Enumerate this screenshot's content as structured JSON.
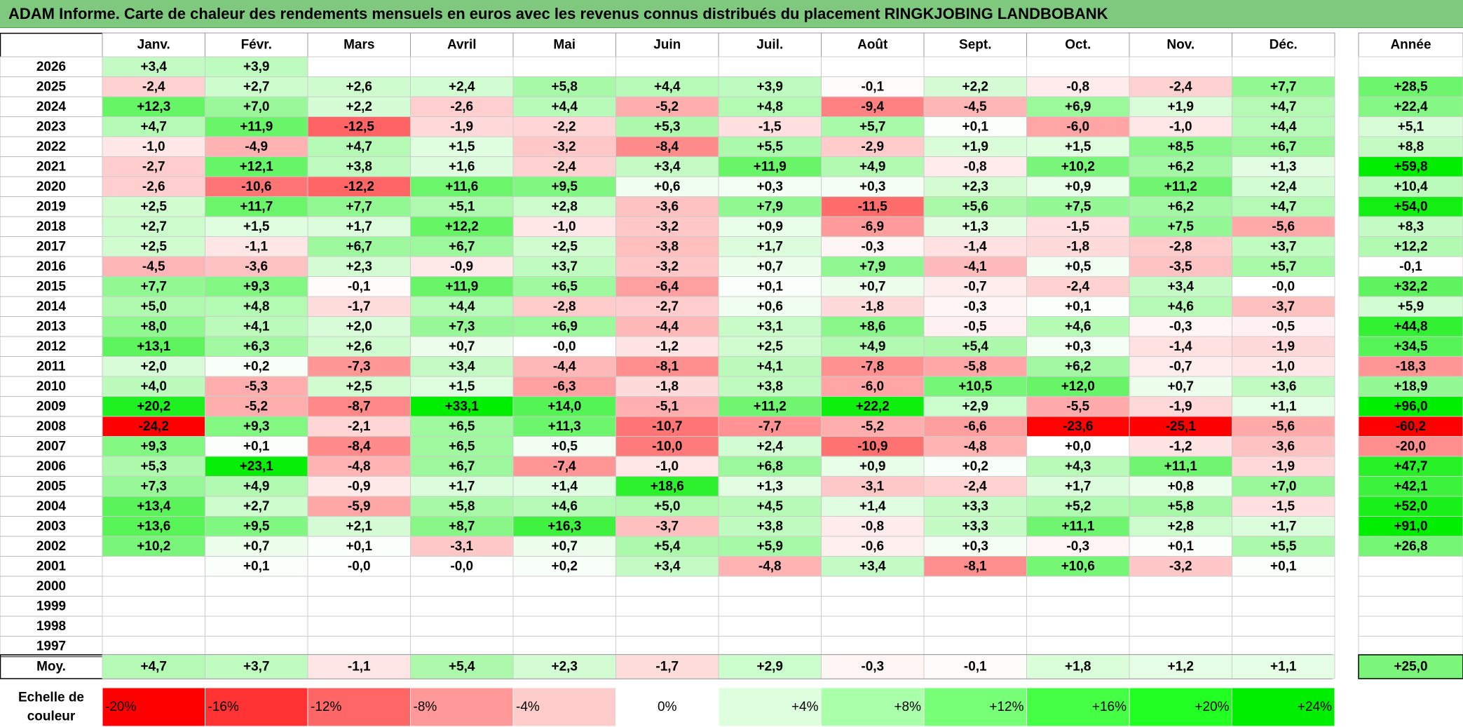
{
  "title": "ADAM Informe. Carte de chaleur des rendements mensuels en euros avec les revenus connus distribués du placement RINGKJOBING LANDBOBANK",
  "chart_data": {
    "type": "heatmap",
    "title": "ADAM Informe. Carte de chaleur des rendements mensuels en euros avec les revenus connus distribués du placement RINGKJOBING LANDBOBANK",
    "months": [
      "Janv.",
      "Févr.",
      "Mars",
      "Avril",
      "Mai",
      "Juin",
      "Juil.",
      "Août",
      "Sept.",
      "Oct.",
      "Nov.",
      "Déc."
    ],
    "year_header": "Année",
    "rows": [
      {
        "year": "2026",
        "values": [
          "+3,4",
          "+3,9",
          "",
          "",
          "",
          "",
          "",
          "",
          "",
          "",
          "",
          ""
        ],
        "annual": ""
      },
      {
        "year": "2025",
        "values": [
          "-2,4",
          "+2,7",
          "+2,6",
          "+2,4",
          "+5,8",
          "+4,4",
          "+3,9",
          "-0,1",
          "+2,2",
          "-0,8",
          "-2,4",
          "+7,7"
        ],
        "annual": "+28,5"
      },
      {
        "year": "2024",
        "values": [
          "+12,3",
          "+7,0",
          "+2,2",
          "-2,6",
          "+4,4",
          "-5,2",
          "+4,8",
          "-9,4",
          "-4,5",
          "+6,9",
          "+1,9",
          "+4,7"
        ],
        "annual": "+22,4"
      },
      {
        "year": "2023",
        "values": [
          "+4,7",
          "+11,9",
          "-12,5",
          "-1,9",
          "-2,2",
          "+5,3",
          "-1,5",
          "+5,7",
          "+0,1",
          "-6,0",
          "-1,0",
          "+4,4"
        ],
        "annual": "+5,1"
      },
      {
        "year": "2022",
        "values": [
          "-1,0",
          "-4,9",
          "+4,7",
          "+1,5",
          "-3,2",
          "-8,4",
          "+5,5",
          "-2,9",
          "+1,9",
          "+1,5",
          "+8,5",
          "+6,7"
        ],
        "annual": "+8,8"
      },
      {
        "year": "2021",
        "values": [
          "-2,7",
          "+12,1",
          "+3,8",
          "+1,6",
          "-2,4",
          "+3,4",
          "+11,9",
          "+4,9",
          "-0,8",
          "+10,2",
          "+6,2",
          "+1,3"
        ],
        "annual": "+59,8"
      },
      {
        "year": "2020",
        "values": [
          "-2,6",
          "-10,6",
          "-12,2",
          "+11,6",
          "+9,5",
          "+0,6",
          "+0,3",
          "+0,3",
          "+2,3",
          "+0,9",
          "+11,2",
          "+2,4"
        ],
        "annual": "+10,4"
      },
      {
        "year": "2019",
        "values": [
          "+2,5",
          "+11,7",
          "+7,7",
          "+5,1",
          "+2,8",
          "-3,6",
          "+7,9",
          "-11,5",
          "+5,6",
          "+7,5",
          "+6,2",
          "+4,7"
        ],
        "annual": "+54,0"
      },
      {
        "year": "2018",
        "values": [
          "+2,7",
          "+1,5",
          "+1,7",
          "+12,2",
          "-1,0",
          "-3,2",
          "+0,9",
          "-6,9",
          "+1,3",
          "-1,5",
          "+7,5",
          "-5,6"
        ],
        "annual": "+8,3"
      },
      {
        "year": "2017",
        "values": [
          "+2,5",
          "-1,1",
          "+6,7",
          "+6,7",
          "+2,5",
          "-3,8",
          "+1,7",
          "-0,3",
          "-1,4",
          "-1,8",
          "-2,8",
          "+3,7"
        ],
        "annual": "+12,2"
      },
      {
        "year": "2016",
        "values": [
          "-4,5",
          "-3,6",
          "+2,3",
          "-0,9",
          "+3,7",
          "-3,2",
          "+0,7",
          "+7,9",
          "-4,1",
          "+0,5",
          "-3,5",
          "+5,7"
        ],
        "annual": "-0,1"
      },
      {
        "year": "2015",
        "values": [
          "+7,7",
          "+9,3",
          "-0,1",
          "+11,9",
          "+6,5",
          "-6,4",
          "+0,1",
          "+0,7",
          "-0,7",
          "-2,4",
          "+3,4",
          "-0,0"
        ],
        "annual": "+32,2"
      },
      {
        "year": "2014",
        "values": [
          "+5,0",
          "+4,8",
          "-1,7",
          "+4,4",
          "-2,8",
          "-2,7",
          "+0,6",
          "-1,8",
          "-0,3",
          "+0,1",
          "+4,6",
          "-3,7"
        ],
        "annual": "+5,9"
      },
      {
        "year": "2013",
        "values": [
          "+8,0",
          "+4,1",
          "+2,0",
          "+7,3",
          "+6,9",
          "-4,4",
          "+3,1",
          "+8,6",
          "-0,5",
          "+4,6",
          "-0,3",
          "-0,5"
        ],
        "annual": "+44,8"
      },
      {
        "year": "2012",
        "values": [
          "+13,1",
          "+6,3",
          "+2,6",
          "+0,7",
          "-0,0",
          "-1,2",
          "+2,5",
          "+4,9",
          "+5,4",
          "+0,3",
          "-1,4",
          "-1,9"
        ],
        "annual": "+34,5"
      },
      {
        "year": "2011",
        "values": [
          "+2,0",
          "+0,2",
          "-7,3",
          "+3,4",
          "-4,4",
          "-8,1",
          "+4,1",
          "-7,8",
          "-5,8",
          "+6,2",
          "-0,7",
          "-1,0"
        ],
        "annual": "-18,3"
      },
      {
        "year": "2010",
        "values": [
          "+4,0",
          "-5,3",
          "+2,5",
          "+1,5",
          "-6,3",
          "-1,8",
          "+3,8",
          "-6,0",
          "+10,5",
          "+12,0",
          "+0,7",
          "+3,6"
        ],
        "annual": "+18,9"
      },
      {
        "year": "2009",
        "values": [
          "+20,2",
          "-5,2",
          "-8,7",
          "+33,1",
          "+14,0",
          "-5,1",
          "+11,2",
          "+22,2",
          "+2,9",
          "-5,5",
          "-1,9",
          "+1,1"
        ],
        "annual": "+96,0"
      },
      {
        "year": "2008",
        "values": [
          "-24,2",
          "+9,3",
          "-2,1",
          "+6,5",
          "+11,3",
          "-10,7",
          "-7,7",
          "-5,2",
          "-6,6",
          "-23,6",
          "-25,1",
          "-5,6"
        ],
        "annual": "-60,2"
      },
      {
        "year": "2007",
        "values": [
          "+9,3",
          "+0,1",
          "-8,4",
          "+6,5",
          "+0,5",
          "-10,0",
          "+2,4",
          "-10,9",
          "-4,8",
          "+0,0",
          "-1,2",
          "-3,6"
        ],
        "annual": "-20,0"
      },
      {
        "year": "2006",
        "values": [
          "+5,3",
          "+23,1",
          "-4,8",
          "+6,7",
          "-7,4",
          "-1,0",
          "+6,8",
          "+0,9",
          "+0,2",
          "+4,3",
          "+11,1",
          "-1,9"
        ],
        "annual": "+47,7"
      },
      {
        "year": "2005",
        "values": [
          "+7,3",
          "+4,9",
          "-0,9",
          "+1,7",
          "+1,4",
          "+18,6",
          "+1,3",
          "-3,1",
          "-2,4",
          "+1,7",
          "+0,8",
          "+7,0"
        ],
        "annual": "+42,1"
      },
      {
        "year": "2004",
        "values": [
          "+13,4",
          "+2,7",
          "-5,9",
          "+5,8",
          "+4,6",
          "+5,0",
          "+4,5",
          "+1,4",
          "+3,3",
          "+5,2",
          "+5,8",
          "-1,5"
        ],
        "annual": "+52,0"
      },
      {
        "year": "2003",
        "values": [
          "+13,6",
          "+9,5",
          "+2,1",
          "+8,7",
          "+16,3",
          "-3,7",
          "+3,8",
          "-0,8",
          "+3,3",
          "+11,1",
          "+2,8",
          "+1,7"
        ],
        "annual": "+91,0"
      },
      {
        "year": "2002",
        "values": [
          "+10,2",
          "+0,7",
          "+0,1",
          "-3,1",
          "+0,7",
          "+5,4",
          "+5,9",
          "-0,6",
          "+0,3",
          "-0,3",
          "+0,1",
          "+5,5"
        ],
        "annual": "+26,8"
      },
      {
        "year": "2001",
        "values": [
          "",
          "+0,1",
          "-0,0",
          "-0,0",
          "+0,2",
          "+3,4",
          "-4,8",
          "+3,4",
          "-8,1",
          "+10,6",
          "-3,2",
          "+0,1"
        ],
        "annual": ""
      },
      {
        "year": "2000",
        "values": [
          "",
          "",
          "",
          "",
          "",
          "",
          "",
          "",
          "",
          "",
          "",
          ""
        ],
        "annual": ""
      },
      {
        "year": "1999",
        "values": [
          "",
          "",
          "",
          "",
          "",
          "",
          "",
          "",
          "",
          "",
          "",
          ""
        ],
        "annual": ""
      },
      {
        "year": "1998",
        "values": [
          "",
          "",
          "",
          "",
          "",
          "",
          "",
          "",
          "",
          "",
          "",
          ""
        ],
        "annual": ""
      },
      {
        "year": "1997",
        "values": [
          "",
          "",
          "",
          "",
          "",
          "",
          "",
          "",
          "",
          "",
          "",
          ""
        ],
        "annual": ""
      }
    ],
    "average": {
      "label": "Moy.",
      "values": [
        "+4,7",
        "+3,7",
        "-1,1",
        "+5,4",
        "+2,3",
        "-1,7",
        "+2,9",
        "-0,3",
        "-0,1",
        "+1,8",
        "+1,2",
        "+1,1"
      ],
      "annual": "+25,0"
    },
    "color_scale": {
      "label_line1": "Echelle de",
      "label_line2": "couleur",
      "stops": [
        "-20%",
        "-16%",
        "-12%",
        "-8%",
        "-4%",
        "0%",
        "+4%",
        "+8%",
        "+12%",
        "+16%",
        "+20%",
        "+24%"
      ],
      "colors": [
        "#ff0000",
        "#ff3333",
        "#ff6666",
        "#ff9999",
        "#ffcccc",
        "#ffffff",
        "#ddffdd",
        "#aaffaa",
        "#77ff77",
        "#44ff44",
        "#22ff22",
        "#00ee00"
      ]
    },
    "colors": {
      "negative": "#ff0000",
      "neutral": "#ffffff",
      "positive": "#00ff00"
    }
  }
}
